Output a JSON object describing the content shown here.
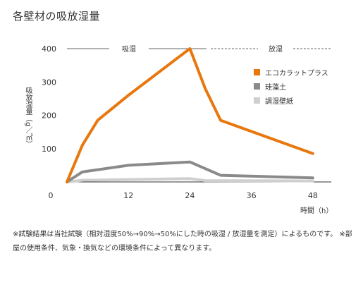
{
  "title": "各壁材の吸放湿量",
  "phase_labels": {
    "absorb": "吸湿",
    "release": "放湿"
  },
  "y_axis_label": "吸放湿量（g／㎡）",
  "x_axis_label": "時間（h）",
  "note": "※試験結果は当社試験（相対湿度50%→90%→50%にした時の吸湿 / 放湿量を測定）によるものです。 ※部屋の使用条件、気象・換気などの環境条件によって異なります。",
  "chart_data": {
    "type": "line",
    "title": "各壁材の吸放湿量",
    "xlabel": "時間（h）",
    "ylabel": "吸放湿量（g／㎡）",
    "xlim": [
      0,
      48
    ],
    "ylim": [
      0,
      400
    ],
    "x_ticks": [
      0,
      12,
      24,
      36,
      48
    ],
    "y_ticks": [
      100,
      200,
      300,
      400
    ],
    "grid": false,
    "legend_position": "right",
    "series": [
      {
        "name": "エコカラットプラス",
        "color": "#e8770e",
        "x": [
          0,
          3,
          6,
          12,
          24,
          27,
          30,
          48
        ],
        "y": [
          0,
          110,
          185,
          260,
          400,
          280,
          185,
          85
        ]
      },
      {
        "name": "珪藻土",
        "color": "#8a8a8a",
        "x": [
          0,
          3,
          12,
          24,
          30,
          48
        ],
        "y": [
          0,
          30,
          50,
          60,
          20,
          12
        ]
      },
      {
        "name": "調湿壁紙",
        "color": "#cfcfcf",
        "x": [
          0,
          3,
          24,
          27,
          48
        ],
        "y": [
          0,
          5,
          10,
          4,
          3
        ]
      }
    ]
  }
}
